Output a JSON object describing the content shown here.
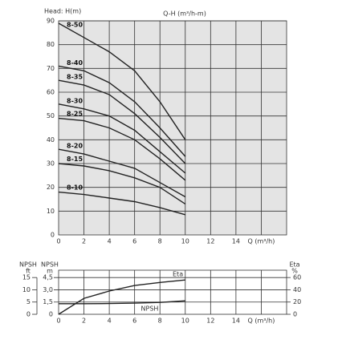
{
  "chart_data": [
    {
      "type": "line",
      "title": "Q-H (m³/h-m)",
      "ylabel": "Head: H(m)",
      "x": [
        0,
        2,
        4,
        6,
        8,
        10
      ],
      "xlim": [
        0,
        18
      ],
      "xticks": [
        0,
        2,
        4,
        6,
        8,
        10,
        12,
        14,
        {
          "value": 16,
          "label": "Q (m³/h)"
        }
      ],
      "ylim": [
        0,
        90
      ],
      "yticks": [
        0,
        10,
        20,
        30,
        40,
        50,
        60,
        70,
        80,
        90
      ],
      "grid": true,
      "series": [
        {
          "name": "8-50",
          "color": "#222222",
          "values": [
            89,
            83,
            77,
            69,
            56,
            40
          ]
        },
        {
          "name": "8-40",
          "color": "#222222",
          "values": [
            71,
            69,
            64,
            56,
            45,
            33
          ]
        },
        {
          "name": "8-35",
          "color": "#222222",
          "values": [
            65,
            63,
            59,
            51,
            41,
            30
          ]
        },
        {
          "name": "8-30",
          "color": "#222222",
          "values": [
            55,
            53,
            50,
            44,
            35,
            26
          ]
        },
        {
          "name": "8-25",
          "color": "#222222",
          "values": [
            49,
            48,
            45,
            40,
            32,
            23
          ]
        },
        {
          "name": "8-20",
          "color": "#222222",
          "values": [
            36,
            34,
            31,
            28,
            22,
            16
          ]
        },
        {
          "name": "8-15",
          "color": "#222222",
          "values": [
            30,
            29,
            27,
            24,
            20,
            13
          ]
        },
        {
          "name": "8-10",
          "color": "#222222",
          "values": [
            18,
            17,
            15.5,
            14,
            11.5,
            8.5
          ]
        }
      ]
    },
    {
      "type": "line",
      "ylabel": [
        "NPSH",
        "m"
      ],
      "y3label": [
        "NPSH",
        "ft"
      ],
      "y2label": [
        "Eta",
        "%"
      ],
      "x": [
        0,
        2,
        4,
        6,
        8,
        10
      ],
      "xlim": [
        0,
        18
      ],
      "xticks": [
        0,
        2,
        4,
        6,
        8,
        10,
        12,
        14,
        {
          "value": 16,
          "label": "Q (m³/h)"
        }
      ],
      "ylim": [
        0,
        5.4
      ],
      "yticks": [
        0,
        {
          "value": 1.5,
          "label": "1,5"
        },
        {
          "value": 3,
          "label": "3,0"
        },
        {
          "value": 4.5,
          "label": "4,5"
        }
      ],
      "y2lim": [
        0,
        72
      ],
      "y2ticks": [
        0,
        20,
        40,
        60
      ],
      "y3lim": [
        0,
        18
      ],
      "y3ticks": [
        0,
        5,
        10,
        15
      ],
      "grid": true,
      "series": [
        {
          "name": "Eta",
          "color": "#222222",
          "axis": "y2",
          "values": [
            0,
            26,
            38,
            47,
            52,
            56
          ]
        },
        {
          "name": "NPSH",
          "color": "#222222",
          "values": [
            1.3,
            1.3,
            1.32,
            1.36,
            1.45,
            1.65
          ]
        }
      ]
    }
  ]
}
